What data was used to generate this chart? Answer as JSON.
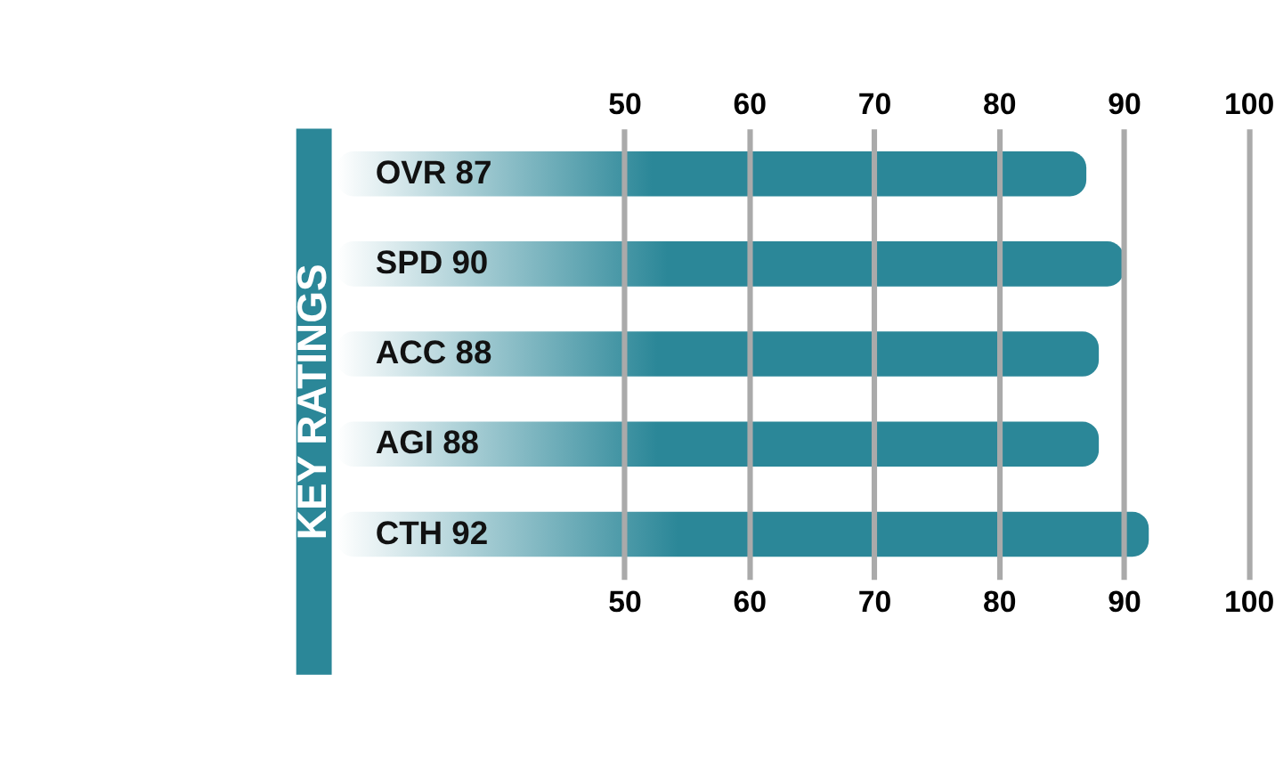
{
  "chart_data": {
    "type": "bar",
    "orientation": "horizontal",
    "annotations": [
      "KEY RATINGS"
    ],
    "categories": [
      "OVR 87",
      "SPD 90",
      "ACC 88",
      "AGI 88",
      "CTH 92"
    ],
    "values": [
      87,
      90,
      88,
      88,
      92
    ],
    "color": "#2b8798",
    "xlim": [
      27,
      102
    ],
    "xticks": [
      50,
      60,
      70,
      80,
      90,
      100
    ],
    "x2lim": [
      27,
      102
    ],
    "x2ticks": [
      50,
      60,
      70,
      80,
      90,
      100
    ],
    "grid": "x"
  }
}
